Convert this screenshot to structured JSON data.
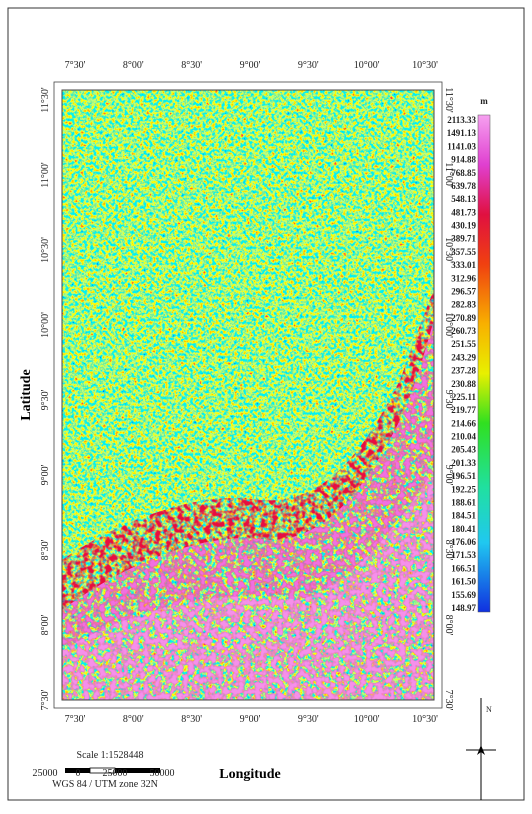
{
  "frame": {
    "top_labels": [
      "7°30'",
      "8°00'",
      "8°30'",
      "9°00'",
      "9°30'",
      "10°00'",
      "10°30'"
    ],
    "bottom_labels": [
      "7°30'",
      "8°00'",
      "8°30'",
      "9°00'",
      "9°30'",
      "10°00'",
      "10°30'"
    ],
    "left_labels": [
      "11°30'",
      "11°00'",
      "10°30'",
      "10°00'",
      "9°30'",
      "9°00'",
      "8°30'",
      "8°00'",
      "7°30'"
    ],
    "right_labels": [
      "11°30'",
      "11°00'",
      "10°30'",
      "10°00'",
      "9°30'",
      "9°00'",
      "8°30'",
      "8°00'",
      "7°30'"
    ]
  },
  "axis_labels": {
    "x": "Longitude",
    "y": "Latitude"
  },
  "legend": {
    "unit": "m",
    "labels": [
      "2113.33",
      "1491.13",
      "1141.03",
      "914.88",
      "768.85",
      "639.78",
      "548.13",
      "481.73",
      "430.19",
      "389.71",
      "357.55",
      "333.01",
      "312.96",
      "296.57",
      "282.83",
      "270.89",
      "260.73",
      "251.55",
      "243.29",
      "237.28",
      "230.88",
      "225.11",
      "219.77",
      "214.66",
      "210.04",
      "205.43",
      "201.33",
      "196.51",
      "192.25",
      "188.61",
      "184.51",
      "180.41",
      "176.06",
      "171.53",
      "166.51",
      "161.50",
      "155.69",
      "148.97"
    ]
  },
  "scale": {
    "ratio": "Scale 1:1528448",
    "bar_labels": [
      "25000",
      "0",
      "25000",
      "50000"
    ],
    "projection": "WGS 84 / UTM zone 32N"
  },
  "north": "N"
}
